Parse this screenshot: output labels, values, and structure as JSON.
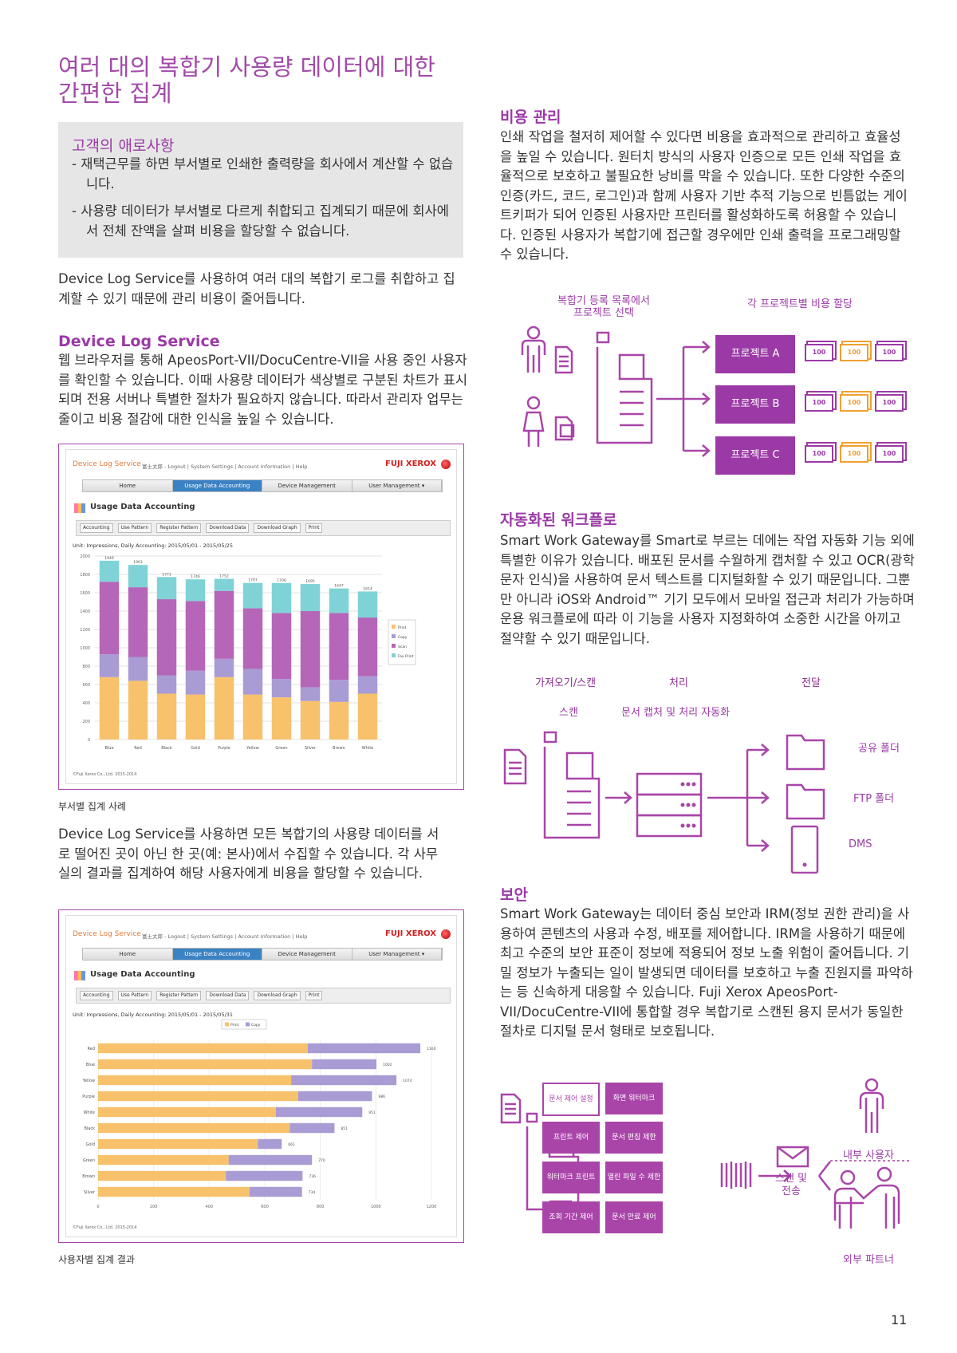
{
  "left": {
    "title": "여러 대의 복합기 사용량 데이터에 대한\n간편한 집계",
    "pain_box": {
      "heading": "고객의 애로사항",
      "bullets": [
        "- 재택근무를 하면 부서별로 인쇄한 출력량을 회사에서 계산할 수 없습니다.",
        "- 사용량 데이터가 부서별로 다르게 취합되고 집계되기 때문에 회사에서 전체 잔액을 살펴 비용을 할당할 수 없습니다."
      ]
    },
    "intro": "Device Log Service를 사용하여 여러 대의 복합기 로그를 취합하고 집계할 수 있기 때문에 관리 비용이 줄어듭니다.",
    "dls_heading": "Device Log Service",
    "dls_body": "웹 브라우저를 통해 ApeosPort-VII/DocuCentre-VII을 사용 중인 사용자를 확인할 수 있습니다. 이때 사용량 데이터가 색상별로 구분된 차트가 표시되며 전용 서버나 특별한 절차가 필요하지 않습니다. 따라서 관리자 업무는 줄이고 비용 절감에 대한 인식을 높일 수 있습니다.",
    "caption1": "부서별 집계 사례",
    "paragraph2": "Device Log Service를 사용하면 모든 복합기의 사용량 데이터를 서로 떨어진 곳이 아닌 한 곳(예: 본사)에서 수집할 수 있습니다. 각 사무실의 결과를 집계하여 해당 사용자에게 비용을 할당할 수 있습니다.",
    "caption2": "사용자별 집계 결과"
  },
  "screenshot": {
    "app_name": "Device Log Service",
    "header_links": "富士太郎 - Logout | System Settings | Account Information | Help",
    "brand": "FUJI XEROX",
    "nav": [
      "Home",
      "Usage Data Accounting",
      "Device Management",
      "User Management ▾"
    ],
    "section_title": "Usage Data Accounting",
    "toolbar": [
      "Accounting",
      "Use Pattern",
      "Register Pattern",
      "Download Data",
      "Download Graph",
      "Print"
    ],
    "unit_line_1": "Unit: Impressions, Daily Accounting: 2015/05/01 - 2015/05/25",
    "unit_line_2": "Unit: Impressions, Daily Accounting: 2015/05/01 - 2015/05/31",
    "copyright": "©Fuji Xerox Co., Ltd. 2015-2014"
  },
  "chart_data": [
    {
      "type": "bar",
      "stacked": true,
      "categories": [
        "Blue",
        "Red",
        "Black",
        "Gold",
        "Purple",
        "Yellow",
        "Green",
        "Silver",
        "Brown",
        "White"
      ],
      "totals": [
        1949,
        1903,
        1771,
        1746,
        1752,
        1707,
        1706,
        1695,
        1647,
        1614
      ],
      "series": [
        {
          "name": "Print",
          "color": "#f7c26b",
          "values": [
            680,
            640,
            500,
            490,
            680,
            490,
            460,
            420,
            410,
            500
          ]
        },
        {
          "name": "Copy",
          "color": "#a99bd4",
          "values": [
            250,
            260,
            200,
            260,
            200,
            280,
            200,
            150,
            240,
            190
          ]
        },
        {
          "name": "Scan",
          "color": "#b566b8",
          "values": [
            790,
            760,
            830,
            760,
            740,
            660,
            720,
            830,
            730,
            640
          ]
        },
        {
          "name": "Fax Print",
          "color": "#7fd3d6",
          "values": [
            229,
            243,
            241,
            236,
            132,
            277,
            326,
            295,
            267,
            284
          ]
        }
      ],
      "ylim": [
        0,
        2000
      ],
      "yticks": [
        0,
        200,
        400,
        600,
        800,
        1000,
        1200,
        1400,
        1600,
        1800,
        2000
      ],
      "legend": "right"
    },
    {
      "type": "bar",
      "orientation": "horizontal",
      "stacked": true,
      "categories": [
        "Red",
        "Blue",
        "Yellow",
        "Purple",
        "White",
        "Black",
        "Gold",
        "Green",
        "Brown",
        "Silver"
      ],
      "totals": [
        1160,
        1002,
        1074,
        986,
        951,
        851,
        661,
        770,
        736,
        734
      ],
      "series": [
        {
          "name": "Print",
          "color": "#f7c26b",
          "values": [
            755,
            770,
            695,
            720,
            640,
            690,
            575,
            470,
            460,
            545
          ]
        },
        {
          "name": "Copy",
          "color": "#a99bd4",
          "values": [
            405,
            232,
            379,
            266,
            311,
            161,
            86,
            300,
            276,
            189
          ]
        }
      ],
      "xlim": [
        0,
        1200
      ],
      "xticks": [
        0,
        200,
        400,
        600,
        800,
        1000,
        1200
      ],
      "legend": "top"
    }
  ],
  "right": {
    "cost_heading": "비용 관리",
    "cost_body": "인쇄 작업을 철저히 제어할 수 있다면 비용을 효과적으로 관리하고 효율성을 높일 수 있습니다. 원터치 방식의 사용자 인증으로 모든 인쇄 작업을 효율적으로 보호하고 불필요한 낭비를 막을 수 있습니다. 또한 다양한 수준의 인증(카드, 코드, 로그인)과 함께 사용자 기반 추적 기능으로 빈틈없는 게이트키퍼가 되어 인증된 사용자만 프린터를 활성화하도록 허용할 수 있습니다. 인증된 사용자가 복합기에 접근할 경우에만 인쇄 출력을 프로그래밍할 수 있습니다.",
    "diagram1": {
      "label_left": "복합기 등록 목록에서\n프로젝트 선택",
      "label_right": "각 프로젝트별 비용 할당",
      "projects": [
        "프로젝트 A",
        "프로젝트 B",
        "프로젝트 C"
      ],
      "note": "100"
    },
    "workflow_heading": "자동화된 워크플로",
    "workflow_body": "Smart Work Gateway를 Smart로 부르는 데에는 작업 자동화 기능 외에 특별한 이유가 있습니다. 배포된 문서를 수월하게 캡처할 수 있고 OCR(광학 문자 인식)을 사용하여 문서 텍스트를 디지털화할 수 있기 때문입니다. 그뿐만 아니라 iOS와 Android™ 기기 모두에서 모바일 접근과 처리가 가능하며 운용 워크플로에 따라 이 기능을 사용자 지정화하여 소중한 시간을 아끼고 절약할 수 있기 때문입니다.",
    "diagram2": {
      "col1": "가져오기/스캔",
      "col2": "처리",
      "col3": "전달",
      "sub1": "스캔",
      "sub2": "문서 캡처 및 처리 자동화",
      "dest": [
        "공유 폴더",
        "FTP 폴더",
        "DMS"
      ]
    },
    "security_heading": "보안",
    "security_body": "Smart Work Gateway는 데이터 중심 보안과 IRM(정보 권한 관리)을 사용하여 콘텐츠의 사용과 수정, 배포를 제어합니다. IRM을 사용하기 때문에 최고 수준의 보안 표준이 정보에 적용되어 정보 노출 위험이 줄어듭니다. 기밀 정보가 누출되는 일이 발생되면 데이터를 보호하고 누출 진원지를 파악하는 등 신속하게 대응할 수 있습니다. Fuji Xerox ApeosPort-VII/DocuCentre-VII에 통합할 경우 복합기로 스캔된 용지 문서가 동일한 절차로 디지털 문서 형태로 보호됩니다.",
    "diagram3": {
      "boxes": [
        "문서 제어 설정",
        "화면 워터마크",
        "프린트 제어",
        "문서 편집 제한",
        "워터마크 프린트",
        "열린 파일 수 제한",
        "조회 기간 제어",
        "문서 만료 제어"
      ],
      "scan_send": "스캔 및\n전송",
      "internal": "내부 사용자",
      "external": "외부 파트너"
    }
  },
  "page_number": "11"
}
